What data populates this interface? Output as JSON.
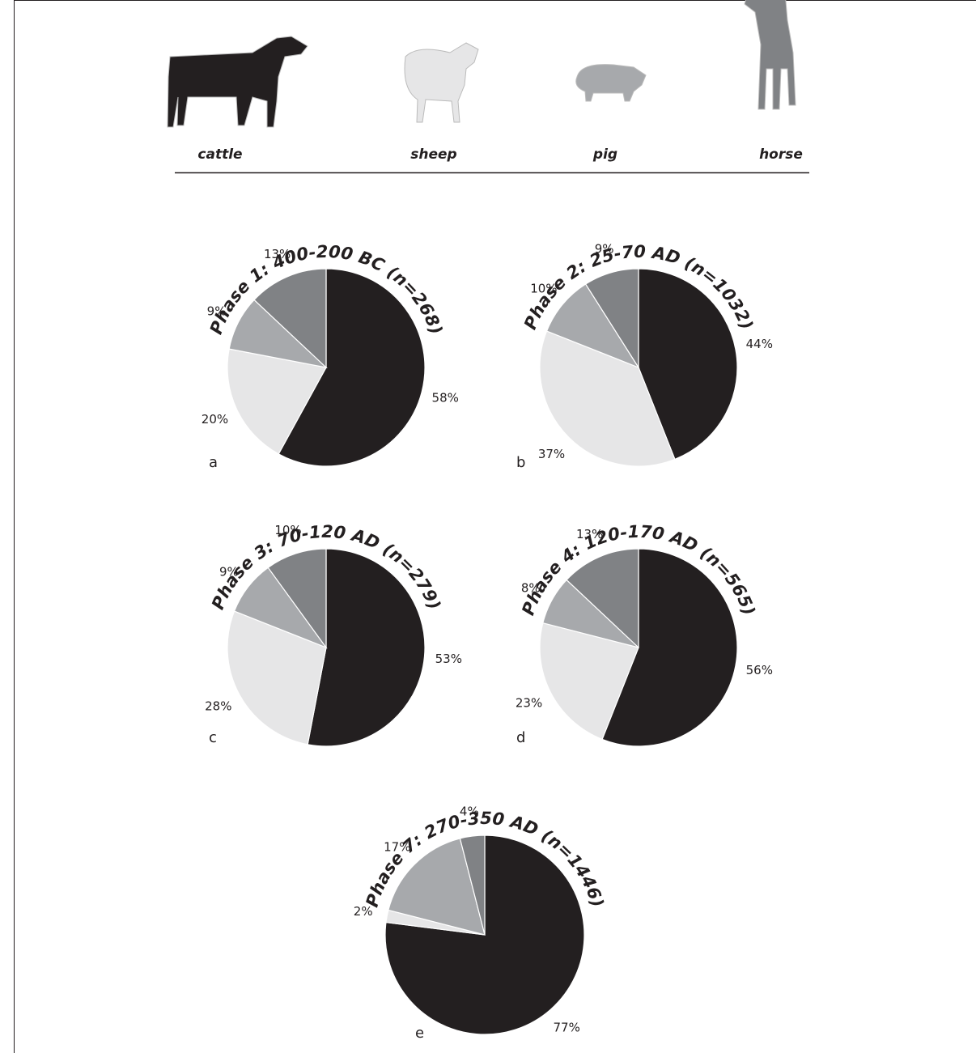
{
  "legend": {
    "categories": [
      "cattle",
      "sheep",
      "pig",
      "horse"
    ],
    "colors": [
      "#231f20",
      "#e6e6e7",
      "#a7a9ac",
      "#808285"
    ]
  },
  "chart_data": [
    {
      "type": "pie",
      "title": "Phase 1: 400-200 BC (n=268)",
      "panel_label": "a",
      "values": [
        58,
        20,
        9,
        13
      ],
      "value_labels": [
        "58%",
        "20%",
        "9%",
        "13%"
      ]
    },
    {
      "type": "pie",
      "title": "Phase 2: 25-70 AD (n=1032)",
      "panel_label": "b",
      "values": [
        44,
        37,
        10,
        9
      ],
      "value_labels": [
        "44%",
        "37%",
        "10%",
        "9%"
      ]
    },
    {
      "type": "pie",
      "title": "Phase 3: 70-120 AD (n=279)",
      "panel_label": "c",
      "values": [
        53,
        28,
        9,
        10
      ],
      "value_labels": [
        "53%",
        "28%",
        "9%",
        "10%"
      ]
    },
    {
      "type": "pie",
      "title": "Phase 4: 120-170 AD (n=565)",
      "panel_label": "d",
      "values": [
        56,
        23,
        8,
        13
      ],
      "value_labels": [
        "56%",
        "23%",
        "8%",
        "13%"
      ]
    },
    {
      "type": "pie",
      "title": "Phase 7: 270-350 AD (n=1446)",
      "panel_label": "e",
      "values": [
        77,
        2,
        17,
        4
      ],
      "value_labels": [
        "77%",
        "2%",
        "17%",
        "4%"
      ]
    }
  ]
}
